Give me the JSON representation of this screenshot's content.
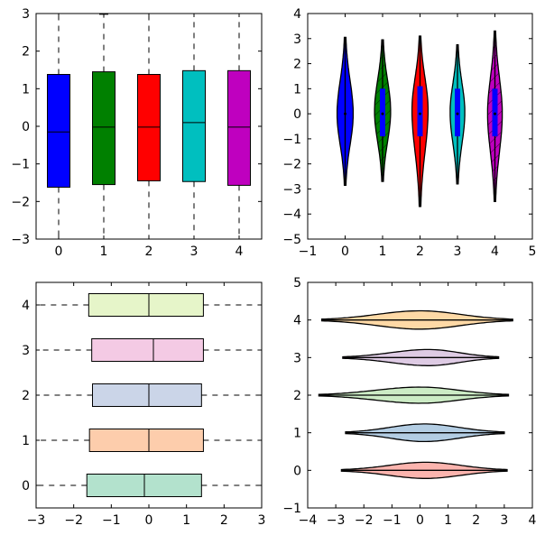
{
  "chart_data": [
    {
      "type": "box",
      "orientation": "vertical",
      "title": "",
      "xlabel": "",
      "ylabel": "",
      "xlim": [
        -0.5,
        4.5
      ],
      "ylim": [
        -3,
        3
      ],
      "xticks": [
        "0",
        "1",
        "2",
        "3",
        "4"
      ],
      "yticks": [
        "−3",
        "−2",
        "−1",
        "0",
        "1",
        "2",
        "3"
      ],
      "boxes": [
        {
          "position": 0,
          "whislo": -3.1,
          "q1": -1.62,
          "med": -0.15,
          "q3": 1.38,
          "whishi": 3.1,
          "color": "#0000ff"
        },
        {
          "position": 1,
          "whislo": -3.1,
          "q1": -1.55,
          "med": -0.02,
          "q3": 1.45,
          "whishi": 2.98,
          "color": "#008000"
        },
        {
          "position": 2,
          "whislo": -3.1,
          "q1": -1.45,
          "med": -0.02,
          "q3": 1.38,
          "whishi": 3.1,
          "color": "#ff0000"
        },
        {
          "position": 3,
          "whislo": -3.1,
          "q1": -1.47,
          "med": 0.1,
          "q3": 1.48,
          "whishi": 3.1,
          "color": "#00bfbf"
        },
        {
          "position": 4,
          "whislo": -3.1,
          "q1": -1.57,
          "med": -0.02,
          "q3": 1.48,
          "whishi": 3.1,
          "color": "#bf00bf"
        }
      ]
    },
    {
      "type": "violin",
      "orientation": "vertical",
      "title": "",
      "xlabel": "",
      "ylabel": "",
      "xlim": [
        -1,
        5
      ],
      "ylim": [
        -5,
        4
      ],
      "xticks": [
        "−1",
        "0",
        "1",
        "2",
        "3",
        "4",
        "5"
      ],
      "yticks": [
        "−5",
        "−4",
        "−3",
        "−2",
        "−1",
        "0",
        "1",
        "2",
        "3",
        "4"
      ],
      "violins": [
        {
          "position": 0,
          "min": -2.85,
          "max": 3.05,
          "center": 0,
          "halfwidth": 0.22,
          "color": "#0000ff",
          "hatch": false,
          "box": false
        },
        {
          "position": 1,
          "min": -2.7,
          "max": 2.95,
          "center": 0.1,
          "halfwidth": 0.22,
          "color": "#008000",
          "hatch": true,
          "box": true,
          "q1": -0.9,
          "q3": 1.0
        },
        {
          "position": 2,
          "min": -3.7,
          "max": 3.1,
          "center": 0.15,
          "halfwidth": 0.22,
          "color": "#ff0000",
          "hatch": false,
          "box": true,
          "q1": -0.9,
          "q3": 1.1
        },
        {
          "position": 3,
          "min": -2.8,
          "max": 2.75,
          "center": 0.05,
          "halfwidth": 0.2,
          "color": "#00bfbf",
          "hatch": false,
          "box": true,
          "q1": -0.9,
          "q3": 1.0
        },
        {
          "position": 4,
          "min": -3.5,
          "max": 3.3,
          "center": 0.0,
          "halfwidth": 0.2,
          "color": "#bf00bf",
          "hatch": true,
          "box": true,
          "q1": -0.9,
          "q3": 1.0
        }
      ]
    },
    {
      "type": "box",
      "orientation": "horizontal",
      "title": "",
      "xlabel": "",
      "ylabel": "",
      "xlim": [
        -3,
        3
      ],
      "ylim": [
        -0.5,
        4.5
      ],
      "xticks": [
        "−3",
        "−2",
        "−1",
        "0",
        "1",
        "2",
        "3"
      ],
      "yticks": [
        "0",
        "1",
        "2",
        "3",
        "4"
      ],
      "boxes": [
        {
          "position": 0,
          "whislo": -3.1,
          "q1": -1.65,
          "med": -0.12,
          "q3": 1.4,
          "whishi": 3.1,
          "color": "#b3e2cd"
        },
        {
          "position": 1,
          "whislo": -3.1,
          "q1": -1.58,
          "med": 0.0,
          "q3": 1.45,
          "whishi": 3.0,
          "color": "#fdcdac"
        },
        {
          "position": 2,
          "whislo": -3.1,
          "q1": -1.5,
          "med": 0.0,
          "q3": 1.4,
          "whishi": 3.1,
          "color": "#cbd5e8"
        },
        {
          "position": 3,
          "whislo": -3.1,
          "q1": -1.52,
          "med": 0.12,
          "q3": 1.45,
          "whishi": 3.1,
          "color": "#f4cae4"
        },
        {
          "position": 4,
          "whislo": -3.1,
          "q1": -1.6,
          "med": 0.0,
          "q3": 1.45,
          "whishi": 3.1,
          "color": "#e6f5c9"
        }
      ]
    },
    {
      "type": "violin",
      "orientation": "horizontal",
      "title": "",
      "xlabel": "",
      "ylabel": "",
      "xlim": [
        -4,
        4
      ],
      "ylim": [
        -1,
        5
      ],
      "xticks": [
        "−4",
        "−3",
        "−2",
        "−1",
        "0",
        "1",
        "2",
        "3",
        "4"
      ],
      "yticks": [
        "−1",
        "0",
        "1",
        "2",
        "3",
        "4",
        "5"
      ],
      "violins": [
        {
          "position": 0,
          "min": -2.8,
          "max": 3.1,
          "center": 0.2,
          "halfwidth": 0.22,
          "color": "#fbb4ae"
        },
        {
          "position": 1,
          "min": -2.65,
          "max": 3.0,
          "center": 0.15,
          "halfwidth": 0.24,
          "color": "#b3cde3"
        },
        {
          "position": 2,
          "min": -3.6,
          "max": 3.15,
          "center": 0.0,
          "halfwidth": 0.22,
          "color": "#ccebc5"
        },
        {
          "position": 3,
          "min": -2.75,
          "max": 2.8,
          "center": 0.3,
          "halfwidth": 0.22,
          "color": "#decbe4"
        },
        {
          "position": 4,
          "min": -3.5,
          "max": 3.3,
          "center": 0.0,
          "halfwidth": 0.25,
          "color": "#fed9a6"
        }
      ]
    }
  ]
}
